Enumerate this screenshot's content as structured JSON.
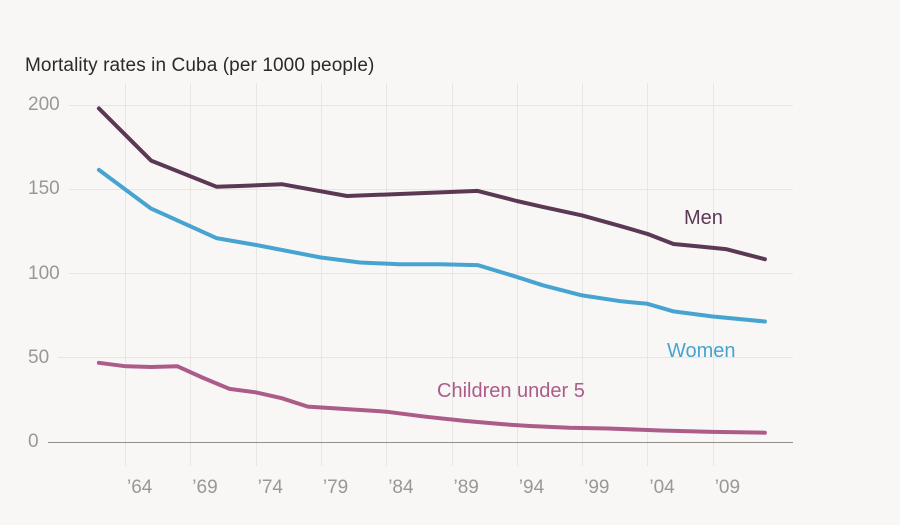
{
  "title": "Mortality rates in Cuba (per 1000 people)",
  "colors": {
    "background": "#f8f7f5",
    "gridline": "#e9e6e2",
    "zero_axis": "#908d8a",
    "tick_label": "#9b9794",
    "title_text": "#2c2926"
  },
  "chart_data": {
    "type": "line",
    "title": "Mortality rates in Cuba (per 1000 people)",
    "xlabel": "",
    "ylabel": "",
    "grid": "on",
    "legend_position": "inline-labels-on-chart",
    "ylim": [
      0,
      200
    ],
    "xlim": [
      1962,
      2013
    ],
    "y_ticks": [
      200,
      150,
      100,
      50,
      0
    ],
    "x_ticks": [
      {
        "year": 1964,
        "label": "’64"
      },
      {
        "year": 1969,
        "label": "’69"
      },
      {
        "year": 1974,
        "label": "’74"
      },
      {
        "year": 1979,
        "label": "’79"
      },
      {
        "year": 1984,
        "label": "’84"
      },
      {
        "year": 1989,
        "label": "’89"
      },
      {
        "year": 1994,
        "label": "’94"
      },
      {
        "year": 1999,
        "label": "’99"
      },
      {
        "year": 2004,
        "label": "’04"
      },
      {
        "year": 2009,
        "label": "’09"
      }
    ],
    "series": [
      {
        "id": "men",
        "name": "Men",
        "color": "#5b3954",
        "points": [
          [
            1962,
            198
          ],
          [
            1966,
            167
          ],
          [
            1971,
            151.5
          ],
          [
            1973,
            152
          ],
          [
            1976,
            153
          ],
          [
            1981,
            146
          ],
          [
            1986,
            147.5
          ],
          [
            1991,
            149
          ],
          [
            1994,
            143
          ],
          [
            1996,
            139.5
          ],
          [
            1999,
            134.5
          ],
          [
            2002,
            128
          ],
          [
            2004,
            123.5
          ],
          [
            2006,
            117.5
          ],
          [
            2008,
            116
          ],
          [
            2010,
            114.5
          ],
          [
            2013,
            108.5
          ]
        ]
      },
      {
        "id": "women",
        "name": "Women",
        "color": "#47a4d1",
        "points": [
          [
            1962,
            161.5
          ],
          [
            1966,
            138.5
          ],
          [
            1971,
            121
          ],
          [
            1974,
            117
          ],
          [
            1979,
            109.5
          ],
          [
            1982,
            106.5
          ],
          [
            1985,
            105.5
          ],
          [
            1988,
            105.5
          ],
          [
            1991,
            105
          ],
          [
            1994,
            98
          ],
          [
            1996,
            93
          ],
          [
            1999,
            87
          ],
          [
            2002,
            83.5
          ],
          [
            2004,
            82
          ],
          [
            2006,
            77.5
          ],
          [
            2009,
            74.5
          ],
          [
            2013,
            71.5
          ]
        ]
      },
      {
        "id": "children",
        "name": "Children under 5",
        "color": "#ac5c89",
        "points": [
          [
            1962,
            47
          ],
          [
            1964,
            45
          ],
          [
            1966,
            44.5
          ],
          [
            1968,
            45
          ],
          [
            1970,
            38
          ],
          [
            1972,
            31.5
          ],
          [
            1974,
            29.5
          ],
          [
            1976,
            26
          ],
          [
            1978,
            21
          ],
          [
            1981,
            19.5
          ],
          [
            1984,
            18
          ],
          [
            1987,
            15
          ],
          [
            1990,
            12.5
          ],
          [
            1993,
            10.5
          ],
          [
            1995,
            9.5
          ],
          [
            1998,
            8.5
          ],
          [
            2001,
            8
          ],
          [
            2005,
            6.8
          ],
          [
            2009,
            6
          ],
          [
            2013,
            5.5
          ]
        ]
      }
    ]
  }
}
